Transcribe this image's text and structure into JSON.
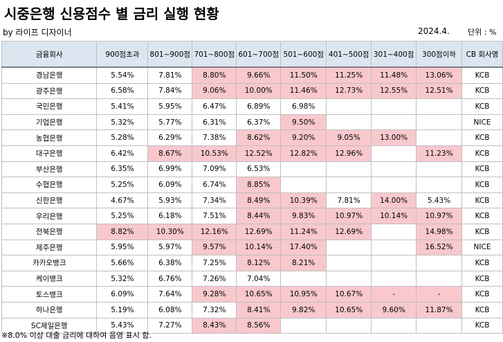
{
  "header": {
    "title": "시중은행 신용점수 별 금리 실행 현황",
    "byline": "by 라이프 디자이너",
    "date": "2024.4.",
    "unit": "단위 : %"
  },
  "table": {
    "columns": [
      "금융회사",
      "900점초과",
      "801~900점",
      "701~800점",
      "601~700점",
      "501~600점",
      "401~500점",
      "301~400점",
      "300점이하",
      "CB 회사명"
    ],
    "rows": [
      [
        "경남은행",
        "5.54%",
        "7.81%",
        "8.80%",
        "9.66%",
        "11.50%",
        "11.25%",
        "11.48%",
        "13.06%",
        "KCB"
      ],
      [
        "광주은행",
        "6.58%",
        "7.84%",
        "9.06%",
        "10.00%",
        "11.46%",
        "12.73%",
        "12.55%",
        "12.51%",
        "KCB"
      ],
      [
        "국민은행",
        "5.41%",
        "5.95%",
        "6.47%",
        "6.89%",
        "6.98%",
        null,
        null,
        null,
        "KCB"
      ],
      [
        "기업은행",
        "5.32%",
        "5.77%",
        "6.31%",
        "6.37%",
        "9.50%",
        null,
        null,
        null,
        "NICE"
      ],
      [
        "농협은행",
        "5.28%",
        "6.29%",
        "7.38%",
        "8.62%",
        "9.20%",
        "9.05%",
        "13.00%",
        null,
        "KCB"
      ],
      [
        "대구은행",
        "6.42%",
        "8.67%",
        "10.53%",
        "12.52%",
        "12.82%",
        "12.96%",
        null,
        "11.23%",
        "KCB"
      ],
      [
        "부산은행",
        "6.35%",
        "6.99%",
        "7.09%",
        "6.53%",
        null,
        null,
        null,
        null,
        "KCB"
      ],
      [
        "수협은행",
        "5.25%",
        "6.09%",
        "6.74%",
        "8.85%",
        null,
        null,
        null,
        null,
        "KCB"
      ],
      [
        "신한은행",
        "4.67%",
        "5.93%",
        "7.34%",
        "8.49%",
        "10.39%",
        "7.81%",
        "14.00%",
        "5.43%",
        "KCB"
      ],
      [
        "우리은행",
        "5.25%",
        "6.18%",
        "7.51%",
        "8.44%",
        "9.83%",
        "10.97%",
        "10.14%",
        "10.97%",
        "KCB"
      ],
      [
        "전북은행",
        "8.82%",
        "10.30%",
        "12.16%",
        "12.69%",
        "11.24%",
        "12.69%",
        null,
        "14.98%",
        "KCB"
      ],
      [
        "제주은행",
        "5.95%",
        "5.97%",
        "9.57%",
        "10.14%",
        "17.40%",
        null,
        null,
        "16.52%",
        "NICE"
      ],
      [
        "카카오뱅크",
        "5.66%",
        "6.38%",
        "7.25%",
        "8.12%",
        "8.21%",
        null,
        null,
        null,
        "KCB"
      ],
      [
        "케이뱅크",
        "5.32%",
        "6.76%",
        "7.26%",
        "7.04%",
        null,
        null,
        null,
        null,
        "KCB"
      ],
      [
        "토스뱅크",
        "6.09%",
        "7.64%",
        "9.28%",
        "10.65%",
        "10.95%",
        "10.67%",
        "-",
        "-",
        "KCB"
      ],
      [
        "하나은행",
        "5.19%",
        "6.08%",
        "7.32%",
        "8.41%",
        "9.82%",
        "10.65%",
        "9.60%",
        "11.87%",
        "KCB"
      ],
      [
        "SC제일은행",
        "5.43%",
        "7.27%",
        "8.43%",
        "8.56%",
        null,
        null,
        null,
        null,
        "KCB"
      ]
    ],
    "shaded": [
      [
        3,
        4,
        5,
        6,
        7,
        8
      ],
      [
        3,
        4,
        5,
        6,
        7,
        8
      ],
      [],
      [
        5
      ],
      [
        4,
        5,
        6,
        7
      ],
      [
        2,
        3,
        4,
        5,
        6,
        8
      ],
      [],
      [
        4
      ],
      [
        4,
        5,
        7
      ],
      [
        4,
        5,
        6,
        7,
        8
      ],
      [
        1,
        2,
        3,
        4,
        5,
        6,
        8
      ],
      [
        3,
        4,
        5,
        8
      ],
      [
        4,
        5
      ],
      [],
      [
        3,
        4,
        5,
        6,
        7,
        8
      ],
      [
        4,
        5,
        6,
        7,
        8
      ],
      [
        3,
        4
      ]
    ],
    "shade_color": "#f8c8cd",
    "header_color": "#dce6f1"
  },
  "footnote": "※8.0% 이상 대출 금리에 대하여 음영 표시 함."
}
